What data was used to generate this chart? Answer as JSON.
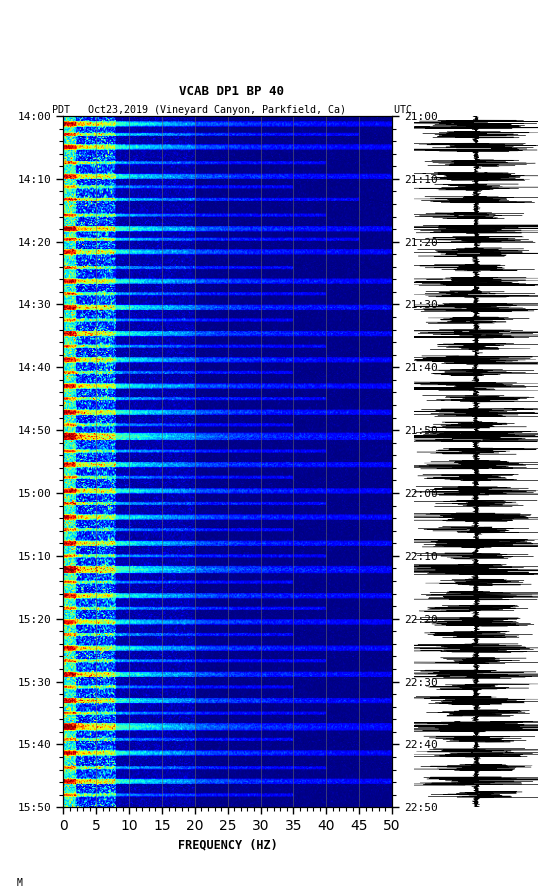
{
  "title_line1": "VCAB DP1 BP 40",
  "title_line2": "PDT   Oct23,2019 (Vineyard Canyon, Parkfield, Ca)        UTC",
  "xlabel": "FREQUENCY (HZ)",
  "freq_min": 0,
  "freq_max": 50,
  "left_time_labels": [
    "14:00",
    "14:10",
    "14:20",
    "14:30",
    "14:40",
    "14:50",
    "15:00",
    "15:10",
    "15:20",
    "15:30",
    "15:40",
    "15:50"
  ],
  "right_time_labels": [
    "21:00",
    "21:10",
    "21:20",
    "21:30",
    "21:40",
    "21:50",
    "22:00",
    "22:10",
    "22:20",
    "22:30",
    "22:40",
    "22:50"
  ],
  "background_color": "#ffffff",
  "colormap": "jet",
  "vertical_lines_freq": [
    5,
    10,
    15,
    20,
    25,
    30,
    35,
    40,
    45
  ],
  "n_time": 660,
  "n_freq": 500,
  "fig_width": 5.52,
  "fig_height": 8.92,
  "dpi": 100
}
